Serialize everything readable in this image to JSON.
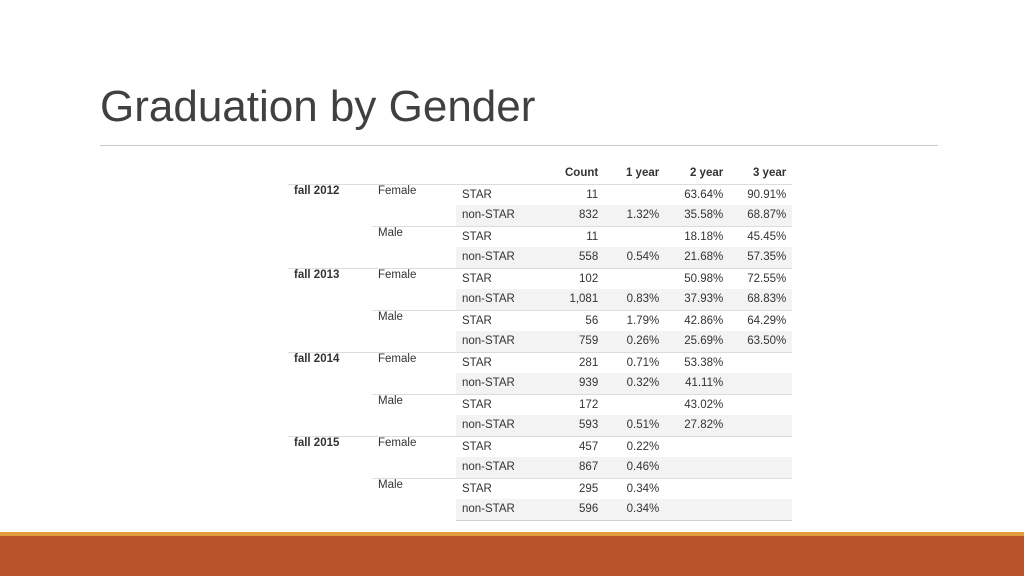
{
  "slide": {
    "title": "Graduation by Gender"
  },
  "columns": [
    "",
    "",
    "",
    "Count",
    "1 year",
    "2 year",
    "3 year"
  ],
  "rows": [
    {
      "term": "fall 2012",
      "gender": "Female",
      "group": "STAR",
      "count": "11",
      "y1": "",
      "y2": "63.64%",
      "y3": "90.91%"
    },
    {
      "term": "",
      "gender": "",
      "group": "non-STAR",
      "count": "832",
      "y1": "1.32%",
      "y2": "35.58%",
      "y3": "68.87%"
    },
    {
      "term": "",
      "gender": "Male",
      "group": "STAR",
      "count": "11",
      "y1": "",
      "y2": "18.18%",
      "y3": "45.45%"
    },
    {
      "term": "",
      "gender": "",
      "group": "non-STAR",
      "count": "558",
      "y1": "0.54%",
      "y2": "21.68%",
      "y3": "57.35%"
    },
    {
      "term": "fall 2013",
      "gender": "Female",
      "group": "STAR",
      "count": "102",
      "y1": "",
      "y2": "50.98%",
      "y3": "72.55%"
    },
    {
      "term": "",
      "gender": "",
      "group": "non-STAR",
      "count": "1,081",
      "y1": "0.83%",
      "y2": "37.93%",
      "y3": "68.83%"
    },
    {
      "term": "",
      "gender": "Male",
      "group": "STAR",
      "count": "56",
      "y1": "1.79%",
      "y2": "42.86%",
      "y3": "64.29%"
    },
    {
      "term": "",
      "gender": "",
      "group": "non-STAR",
      "count": "759",
      "y1": "0.26%",
      "y2": "25.69%",
      "y3": "63.50%"
    },
    {
      "term": "fall 2014",
      "gender": "Female",
      "group": "STAR",
      "count": "281",
      "y1": "0.71%",
      "y2": "53.38%",
      "y3": ""
    },
    {
      "term": "",
      "gender": "",
      "group": "non-STAR",
      "count": "939",
      "y1": "0.32%",
      "y2": "41.11%",
      "y3": ""
    },
    {
      "term": "",
      "gender": "Male",
      "group": "STAR",
      "count": "172",
      "y1": "",
      "y2": "43.02%",
      "y3": ""
    },
    {
      "term": "",
      "gender": "",
      "group": "non-STAR",
      "count": "593",
      "y1": "0.51%",
      "y2": "27.82%",
      "y3": ""
    },
    {
      "term": "fall 2015",
      "gender": "Female",
      "group": "STAR",
      "count": "457",
      "y1": "0.22%",
      "y2": "",
      "y3": ""
    },
    {
      "term": "",
      "gender": "",
      "group": "non-STAR",
      "count": "867",
      "y1": "0.46%",
      "y2": "",
      "y3": ""
    },
    {
      "term": "",
      "gender": "Male",
      "group": "STAR",
      "count": "295",
      "y1": "0.34%",
      "y2": "",
      "y3": ""
    },
    {
      "term": "",
      "gender": "",
      "group": "non-STAR",
      "count": "596",
      "y1": "0.34%",
      "y2": "",
      "y3": ""
    }
  ],
  "colors": {
    "accent_bar": "#b8532b",
    "accent_stripe": "#e19a3c",
    "title_text": "#404040"
  }
}
